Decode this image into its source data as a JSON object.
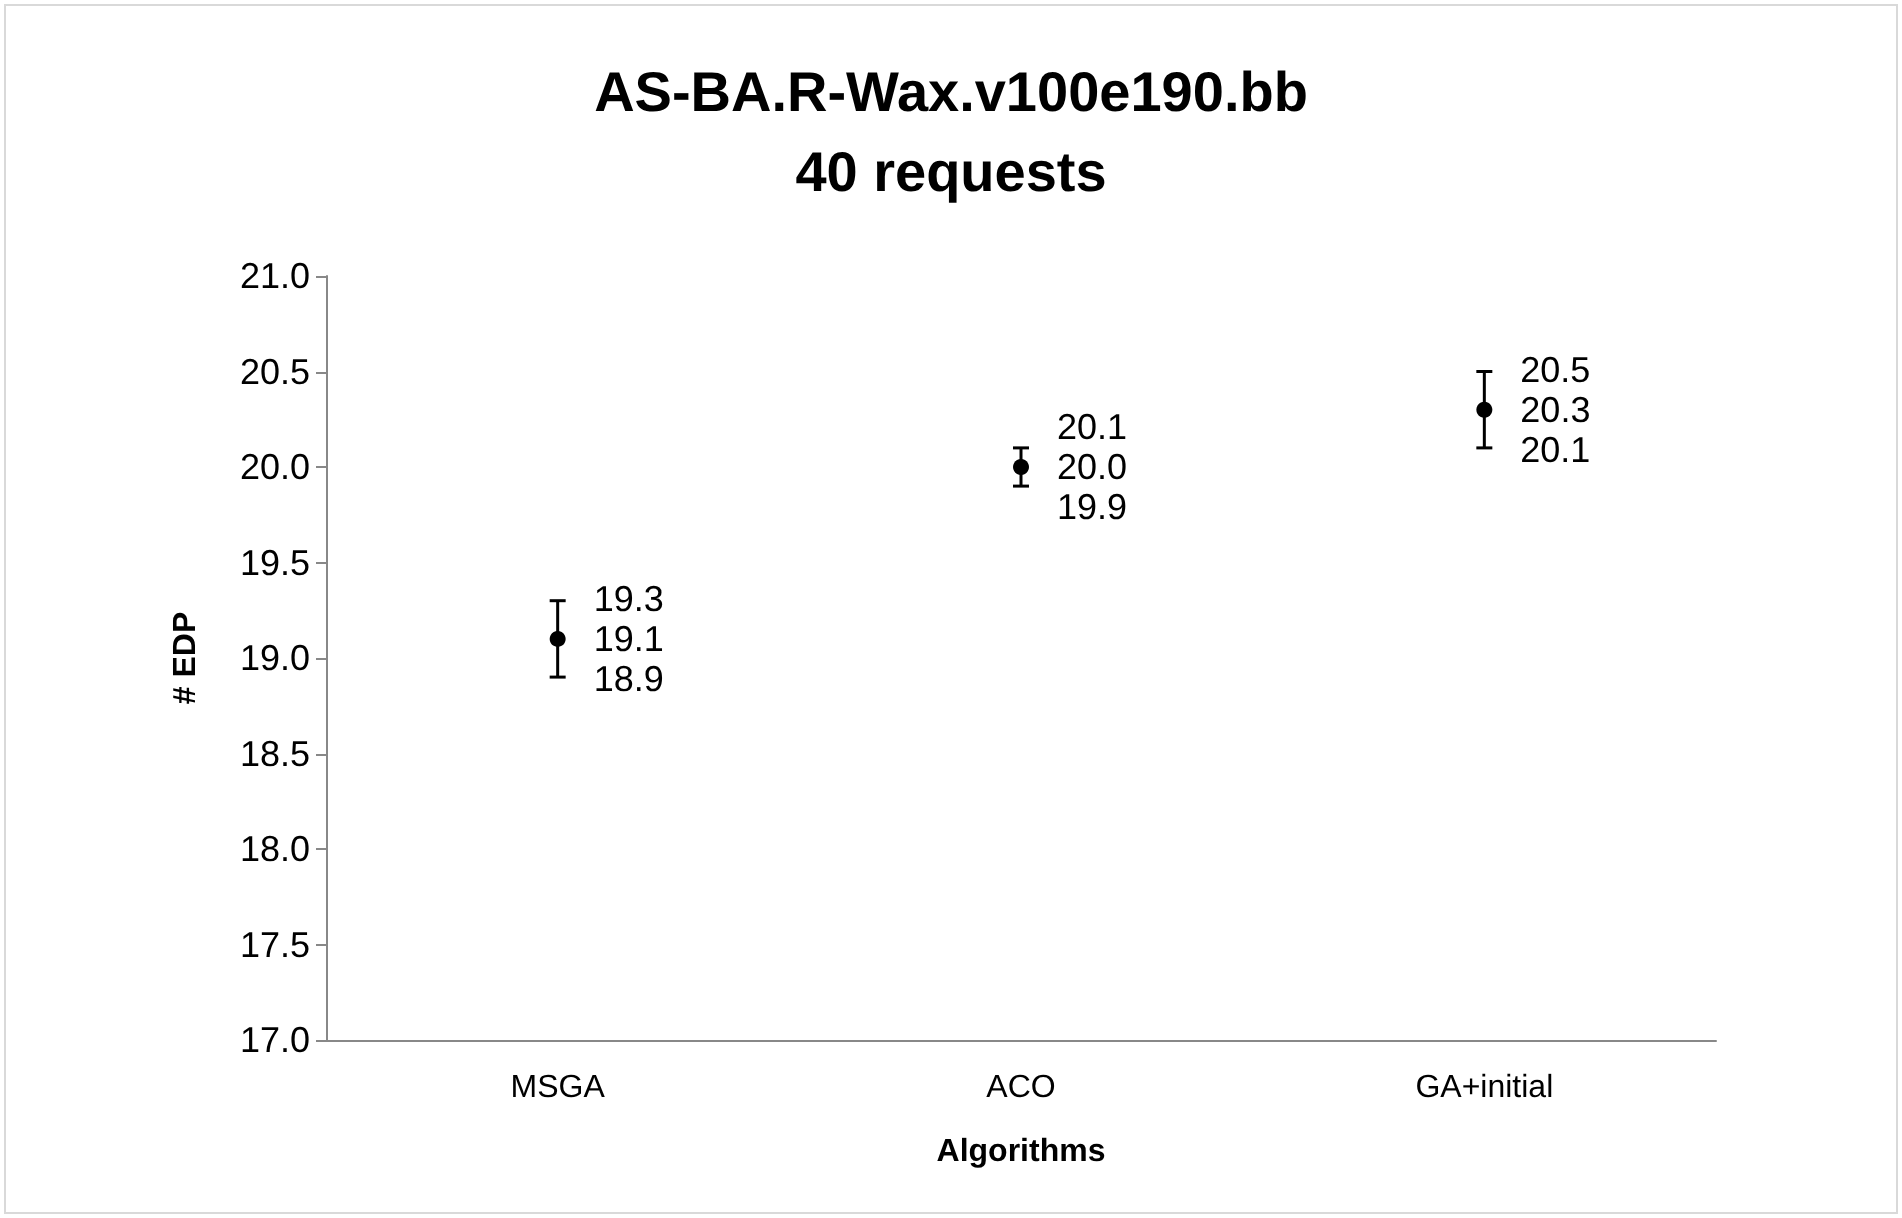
{
  "chart_data": {
    "type": "scatter",
    "title": "AS-BA.R-Wax.v100e190.bb\n40 requests",
    "xlabel": "Algorithms",
    "ylabel": "# EDP",
    "categories": [
      "MSGA",
      "ACO",
      "GA+initial"
    ],
    "values": [
      19.1,
      20.0,
      20.3
    ],
    "value_labels": [
      "19.1",
      "20.0",
      "20.3"
    ],
    "errors": [
      [
        18.9,
        19.3
      ],
      [
        19.9,
        20.1
      ],
      [
        20.1,
        20.5
      ]
    ],
    "color": "#000000",
    "marker": "circle",
    "grid": false,
    "ylim": [
      17,
      21
    ],
    "yticks": [
      {
        "value": 17,
        "label": "17.0"
      },
      {
        "value": 17.5,
        "label": "17.5"
      },
      {
        "value": 18,
        "label": "18.0"
      },
      {
        "value": 18.5,
        "label": "18.5"
      },
      {
        "value": 19,
        "label": "19.0"
      },
      {
        "value": 19.5,
        "label": "19.5"
      },
      {
        "value": 20,
        "label": "20.0"
      },
      {
        "value": 20.5,
        "label": "20.5"
      },
      {
        "value": 21,
        "label": "21.0"
      }
    ],
    "annotations": [
      {
        "text": "19.3",
        "x": "MSGA",
        "y": 19.3
      },
      {
        "text": "18.9",
        "x": "MSGA",
        "y": 18.9
      },
      {
        "text": "20.1",
        "x": "ACO",
        "y": 20.1
      },
      {
        "text": "19.9",
        "x": "ACO",
        "y": 19.9
      },
      {
        "text": "20.5",
        "x": "GA+initial",
        "y": 20.5
      },
      {
        "text": "20.1",
        "x": "GA+initial",
        "y": 20.1
      }
    ]
  }
}
